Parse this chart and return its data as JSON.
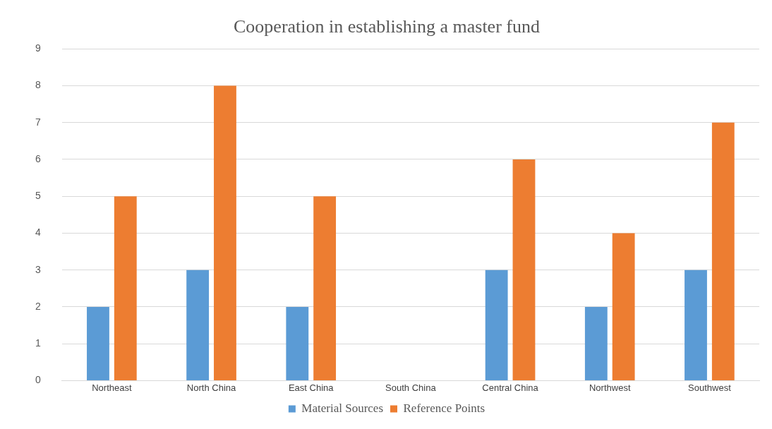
{
  "chart_data": {
    "type": "bar",
    "title": "Cooperation in establishing a master fund",
    "categories": [
      "Northeast",
      "North China",
      "East China",
      "South China",
      "Central China",
      "Northwest",
      "Southwest"
    ],
    "series": [
      {
        "name": "Material Sources",
        "color": "#5b9bd5",
        "values": [
          2,
          3,
          2,
          0,
          3,
          2,
          3
        ]
      },
      {
        "name": "Reference Points",
        "color": "#ed7d31",
        "values": [
          5,
          8,
          5,
          0,
          6,
          4,
          7
        ]
      }
    ],
    "ylim": [
      0,
      9
    ],
    "yticks": [
      0,
      1,
      2,
      3,
      4,
      5,
      6,
      7,
      8,
      9
    ],
    "grid": "y",
    "legend": "bottom"
  }
}
